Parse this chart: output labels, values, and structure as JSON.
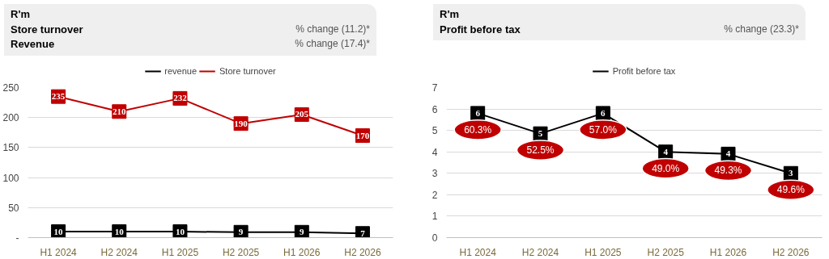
{
  "chart_data": [
    {
      "type": "line",
      "title": "R'm",
      "annotations": [
        "Store turnover",
        "% change (11.2)*",
        "Revenue",
        "% change (17.4)*"
      ],
      "categories": [
        "H1 2024",
        "H2 2024",
        "H1 2025",
        "H2 2025",
        "H1 2026",
        "H2 2026"
      ],
      "series": [
        {
          "name": "revenue",
          "color": "#000000",
          "values": [
            10,
            10,
            10,
            9,
            9,
            7
          ]
        },
        {
          "name": "Store turnover",
          "color": "#c00000",
          "values": [
            235,
            210,
            232,
            190,
            205,
            170
          ]
        }
      ],
      "ylim": [
        0,
        250
      ],
      "yticks": [
        {
          "value": 0,
          "label": "-"
        },
        50,
        100,
        150,
        200,
        250
      ],
      "grid": "y",
      "legend": "top",
      "data_labels": true,
      "marker": "square"
    },
    {
      "type": "line",
      "title": "R'm",
      "annotations": [
        "Profit before tax",
        "% change (23.3)*",
        {
          "text": "60.3%",
          "x": "H1 2024",
          "y": 5.8
        },
        {
          "text": "52.5%",
          "x": "H2 2024",
          "y": 4.85
        },
        {
          "text": "57.0%",
          "x": "H1 2025",
          "y": 5.8
        },
        {
          "text": "49.0%",
          "x": "H2 2025",
          "y": 4.0
        },
        {
          "text": "49.3%",
          "x": "H1 2026",
          "y": 3.9
        },
        {
          "text": "49.6%",
          "x": "H2 2026",
          "y": 3.0
        }
      ],
      "categories": [
        "H1 2024",
        "H2 2024",
        "H1 2025",
        "H2 2025",
        "H1 2026",
        "H2 2026"
      ],
      "series": [
        {
          "name": "Profit before tax",
          "color": "#000000",
          "values": [
            5.8,
            4.85,
            5.8,
            4.0,
            3.9,
            3.0
          ],
          "value_labels": [
            "6",
            "5",
            "6",
            "4",
            "4",
            "3"
          ]
        }
      ],
      "ylim": [
        0,
        7
      ],
      "yticks": [
        0,
        1,
        2,
        3,
        4,
        5,
        6,
        7
      ],
      "grid": "y",
      "legend": "top",
      "marker": "square"
    }
  ]
}
